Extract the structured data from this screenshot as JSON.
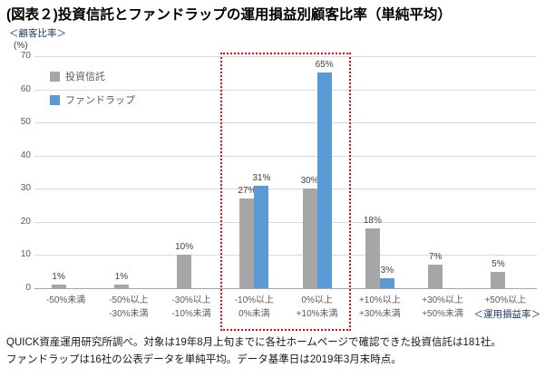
{
  "header": {
    "title": "(図表２)投資信託とファンドラップの運用損益別顧客比率（単純平均）"
  },
  "axes": {
    "y_title": "＜顧客比率＞",
    "y_unit": "(%)",
    "x_title": "＜運用損益率＞"
  },
  "footnote": {
    "line1": "QUICK資産運用研究所調べ。対象は19年8月上旬までに各社ホームページで確認できた投資信託は181社。",
    "line2": "ファンドラップは16社の公表データを単純平均。データ基準日は2019年3月末時点。"
  },
  "chart_data": {
    "type": "bar",
    "title": "(図表２)投資信託とファンドラップの運用損益別顧客比率（単純平均）",
    "categories": [
      [
        "-50%未満",
        ""
      ],
      [
        "-50%以上",
        "-30%未満"
      ],
      [
        "-30%以上",
        "-10%未満"
      ],
      [
        "-10%以上",
        "0%未満"
      ],
      [
        "0%以上",
        "+10%未満"
      ],
      [
        "+10%以上",
        "+30%未満"
      ],
      [
        "+30%以上",
        "+50%未満"
      ],
      [
        "+50%以上",
        ""
      ]
    ],
    "series": [
      {
        "name": "投資信託",
        "color": "#a6a6a6",
        "values": [
          1,
          1,
          10,
          27,
          30,
          18,
          7,
          5
        ],
        "labels": [
          "1%",
          "1%",
          "10%",
          "27%",
          "30%",
          "18%",
          "7%",
          "5%"
        ]
      },
      {
        "name": "ファンドラップ",
        "color": "#5b9bd5",
        "values": [
          0,
          0,
          0,
          31,
          65,
          3,
          0,
          0
        ],
        "labels": [
          "",
          "",
          "",
          "31%",
          "65%",
          "3%",
          "",
          ""
        ]
      }
    ],
    "xlabel": "＜運用損益率＞",
    "ylabel": "＜顧客比率＞ (%)",
    "ylim": [
      0,
      70
    ],
    "ytick_interval": 10,
    "grid": true,
    "legend_position": "top-left-inside",
    "highlight": {
      "type": "red-dotted-box",
      "color": "#ff0000",
      "category_start_index": 3,
      "category_end_index": 4
    }
  }
}
